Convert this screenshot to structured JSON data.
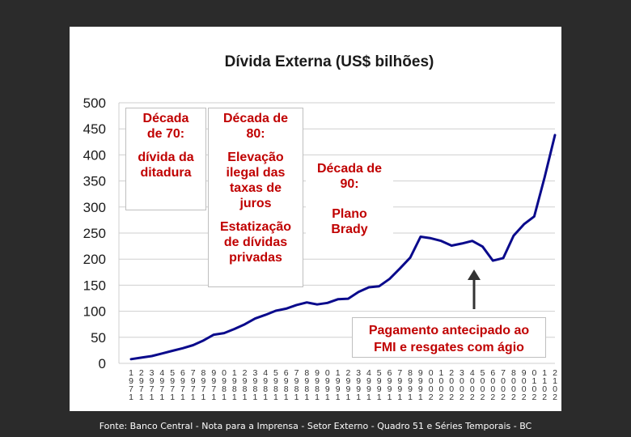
{
  "chart_data": {
    "type": "line",
    "title": "Dívida Externa (US$ bilhões)",
    "xlabel": "",
    "ylabel": "",
    "ylim": [
      0,
      500
    ],
    "yticks": [
      0,
      50,
      100,
      150,
      200,
      250,
      300,
      350,
      400,
      450,
      500
    ],
    "grid": true,
    "x": [
      1971,
      1972,
      1973,
      1974,
      1975,
      1976,
      1977,
      1978,
      1979,
      1980,
      1981,
      1982,
      1983,
      1984,
      1985,
      1986,
      1987,
      1988,
      1989,
      1990,
      1991,
      1992,
      1993,
      1994,
      1995,
      1996,
      1997,
      1998,
      1999,
      2000,
      2001,
      2002,
      2003,
      2004,
      2005,
      2006,
      2007,
      2008,
      2009,
      2010,
      2011,
      2012
    ],
    "xtick_labels": [
      [
        "1",
        "9",
        "7",
        "1"
      ],
      [
        "2",
        "9",
        "7",
        "1"
      ],
      [
        "3",
        "9",
        "7",
        "1"
      ],
      [
        "4",
        "9",
        "7",
        "1"
      ],
      [
        "5",
        "9",
        "7",
        "1"
      ],
      [
        "6",
        "9",
        "7",
        "1"
      ],
      [
        "7",
        "9",
        "7",
        "1"
      ],
      [
        "8",
        "9",
        "7",
        "1"
      ],
      [
        "9",
        "9",
        "7",
        "1"
      ],
      [
        "0",
        "9",
        "8",
        "1"
      ],
      [
        "1",
        "9",
        "8",
        "1"
      ],
      [
        "2",
        "9",
        "8",
        "1"
      ],
      [
        "3",
        "9",
        "8",
        "1"
      ],
      [
        "4",
        "9",
        "8",
        "1"
      ],
      [
        "5",
        "9",
        "8",
        "1"
      ],
      [
        "6",
        "9",
        "8",
        "1"
      ],
      [
        "7",
        "9",
        "8",
        "1"
      ],
      [
        "8",
        "9",
        "8",
        "1"
      ],
      [
        "9",
        "9",
        "8",
        "1"
      ],
      [
        "0",
        "9",
        "9",
        "1"
      ],
      [
        "1",
        "9",
        "9",
        "1"
      ],
      [
        "2",
        "9",
        "9",
        "1"
      ],
      [
        "3",
        "9",
        "9",
        "1"
      ],
      [
        "4",
        "9",
        "9",
        "1"
      ],
      [
        "5",
        "9",
        "9",
        "1"
      ],
      [
        "6",
        "9",
        "9",
        "1"
      ],
      [
        "7",
        "9",
        "9",
        "1"
      ],
      [
        "8",
        "9",
        "9",
        "1"
      ],
      [
        "9",
        "9",
        "9",
        "1"
      ],
      [
        "0",
        "0",
        "0",
        "2"
      ],
      [
        "1",
        "0",
        "0",
        "2"
      ],
      [
        "2",
        "0",
        "0",
        "2"
      ],
      [
        "3",
        "0",
        "0",
        "2"
      ],
      [
        "4",
        "0",
        "0",
        "2"
      ],
      [
        "5",
        "0",
        "0",
        "2"
      ],
      [
        "6",
        "0",
        "0",
        "2"
      ],
      [
        "7",
        "0",
        "0",
        "2"
      ],
      [
        "8",
        "0",
        "0",
        "2"
      ],
      [
        "9",
        "0",
        "0",
        "2"
      ],
      [
        "0",
        "1",
        "0",
        "2"
      ],
      [
        "1",
        "1",
        "0",
        "2"
      ],
      [
        "2",
        "1",
        "0",
        "2"
      ]
    ],
    "series": [
      {
        "color": "#0a0a8c",
        "values": [
          8,
          11,
          14,
          19,
          24,
          29,
          35,
          44,
          55,
          58,
          66,
          75,
          86,
          93,
          101,
          105,
          112,
          117,
          113,
          116,
          123,
          124,
          137,
          146,
          148,
          162,
          182,
          203,
          243,
          240,
          235,
          226,
          230,
          235,
          224,
          197,
          202,
          245,
          267,
          282,
          357,
          438
        ]
      }
    ]
  },
  "annotations": {
    "decade_70": {
      "l1": "Década",
      "l2": "de 70:",
      "l3": "dívida da",
      "l4": "ditadura"
    },
    "decade_80": {
      "l1": "Década de",
      "l2": "80:",
      "l3": "Elevação",
      "l4": "ilegal das",
      "l5": "taxas de",
      "l6": "juros",
      "l7": "Estatização",
      "l8": "de dívidas",
      "l9": "privadas"
    },
    "decade_90": {
      "l1": "Década de",
      "l2": "90:",
      "l3": "Plano",
      "l4": "Brady"
    },
    "fmi": {
      "l1": "Pagamento antecipado ao",
      "l2": "FMI e resgates com ágio"
    },
    "arrow_color": "#333333"
  },
  "source": "Fonte: Banco Central - Nota para a Imprensa - Setor Externo - Quadro 51 e Séries Temporais - BC"
}
